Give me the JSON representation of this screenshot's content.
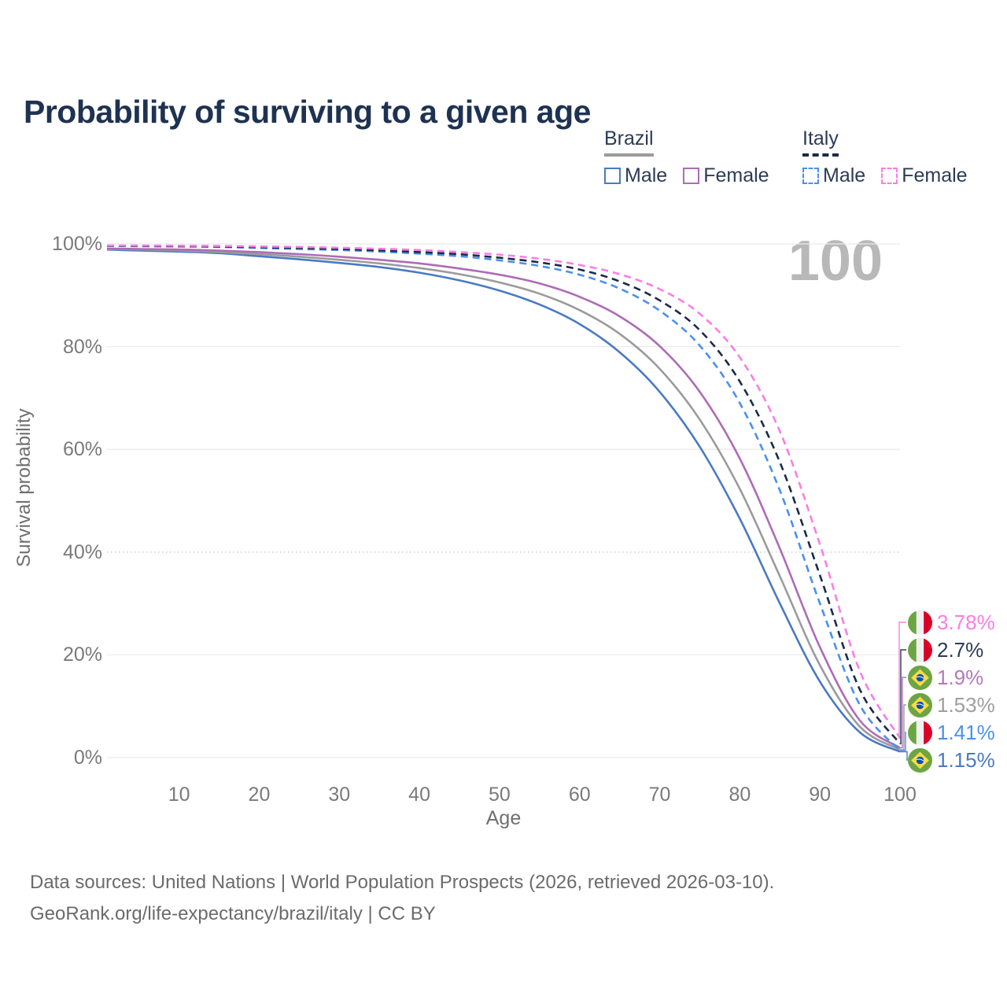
{
  "title": "Probability of surviving to a given age",
  "watermark": "100",
  "legend": {
    "groups": [
      {
        "country": "Brazil",
        "line_style": "solid",
        "underline_color": "#9b9b9b",
        "items": [
          {
            "label": "Male",
            "color": "#4a7ac2"
          },
          {
            "label": "Female",
            "color": "#ad6cb5"
          }
        ]
      },
      {
        "country": "Italy",
        "line_style": "dashed",
        "underline_color": "#1b2b47",
        "items": [
          {
            "label": "Male",
            "color": "#4a90ee"
          },
          {
            "label": "Female",
            "color": "#fa7de5"
          }
        ]
      }
    ]
  },
  "axes": {
    "y_title": "Survival probability",
    "x_title": "Age",
    "y_ticks": [
      {
        "pct": 0,
        "label": "0%"
      },
      {
        "pct": 20,
        "label": "20%"
      },
      {
        "pct": 40,
        "label": "40%"
      },
      {
        "pct": 60,
        "label": "60%"
      },
      {
        "pct": 80,
        "label": "80%"
      },
      {
        "pct": 100,
        "label": "100%"
      }
    ],
    "x_ticks": [
      10,
      20,
      30,
      40,
      50,
      60,
      70,
      80,
      90,
      100
    ]
  },
  "end_labels": [
    {
      "series": "Italy Female",
      "flag": "italy",
      "value": "3.78%",
      "color": "#fa7de5"
    },
    {
      "series": "Italy",
      "flag": "italy",
      "value": "2.7%",
      "color": "#2c3b55"
    },
    {
      "series": "Brazil Female",
      "flag": "brazil",
      "value": "1.9%",
      "color": "#b478bc"
    },
    {
      "series": "Brazil",
      "flag": "brazil",
      "value": "1.53%",
      "color": "#9e9e9e"
    },
    {
      "series": "Italy Male",
      "flag": "italy",
      "value": "1.41%",
      "color": "#4a90ee"
    },
    {
      "series": "Brazil Male",
      "flag": "brazil",
      "value": "1.15%",
      "color": "#4a7ac2"
    }
  ],
  "footer": {
    "line1": "Data sources: United Nations | World Population Prospects (2026, retrieved 2026-03-10).",
    "line2": "GeoRank.org/life-expectancy/brazil/italy | CC BY"
  },
  "flag_colors": {
    "italy": {
      "green": "#6da544",
      "white": "#f0f0f0",
      "red": "#d80027"
    },
    "brazil": {
      "green": "#6da544",
      "yellow": "#ffda44",
      "blue": "#0052b4"
    }
  },
  "chart_data": {
    "type": "line",
    "title": "Probability of surviving to a given age",
    "xlabel": "Age",
    "ylabel": "Survival probability",
    "xlim": [
      1,
      100
    ],
    "ylim": [
      0,
      100
    ],
    "x_ticks": [
      10,
      20,
      30,
      40,
      50,
      60,
      70,
      80,
      90,
      100
    ],
    "y_ticks_pct": [
      0,
      20,
      40,
      60,
      80,
      100
    ],
    "grid": "horizontal",
    "hover_age": 100,
    "hover_gridline_pct": 40,
    "legend_position": "top-right",
    "series": [
      {
        "name": "Italy Female",
        "country": "Italy",
        "sex": "Female",
        "style": "dashed",
        "color": "#fa7de5",
        "end_value_pct": 3.78,
        "points": [
          [
            1,
            99.7
          ],
          [
            5,
            99.68
          ],
          [
            10,
            99.65
          ],
          [
            15,
            99.6
          ],
          [
            20,
            99.5
          ],
          [
            25,
            99.4
          ],
          [
            30,
            99.25
          ],
          [
            35,
            99.05
          ],
          [
            40,
            98.8
          ],
          [
            45,
            98.4
          ],
          [
            50,
            97.9
          ],
          [
            55,
            97.1
          ],
          [
            60,
            95.9
          ],
          [
            65,
            94.1
          ],
          [
            70,
            91.2
          ],
          [
            75,
            86.4
          ],
          [
            80,
            77.9
          ],
          [
            85,
            63.5
          ],
          [
            90,
            41.5
          ],
          [
            95,
            16.8
          ],
          [
            100,
            3.78
          ]
        ]
      },
      {
        "name": "Italy",
        "country": "Italy",
        "sex": "All",
        "style": "dashed",
        "color": "#1b2b47",
        "end_value_pct": 2.7,
        "points": [
          [
            1,
            99.65
          ],
          [
            5,
            99.6
          ],
          [
            10,
            99.55
          ],
          [
            15,
            99.5
          ],
          [
            20,
            99.35
          ],
          [
            25,
            99.2
          ],
          [
            30,
            99.0
          ],
          [
            35,
            98.75
          ],
          [
            40,
            98.4
          ],
          [
            45,
            98.0
          ],
          [
            50,
            97.3
          ],
          [
            55,
            96.4
          ],
          [
            60,
            95.0
          ],
          [
            65,
            92.7
          ],
          [
            70,
            89.0
          ],
          [
            75,
            83.2
          ],
          [
            80,
            73.2
          ],
          [
            85,
            57.5
          ],
          [
            90,
            35.5
          ],
          [
            95,
            13.2
          ],
          [
            100,
            2.7
          ]
        ]
      },
      {
        "name": "Italy Male",
        "country": "Italy",
        "sex": "Male",
        "style": "dashed",
        "color": "#4a90ee",
        "end_value_pct": 1.41,
        "points": [
          [
            1,
            99.6
          ],
          [
            5,
            99.55
          ],
          [
            10,
            99.5
          ],
          [
            15,
            99.4
          ],
          [
            20,
            99.2
          ],
          [
            25,
            99.0
          ],
          [
            30,
            98.8
          ],
          [
            35,
            98.5
          ],
          [
            40,
            98.1
          ],
          [
            45,
            97.6
          ],
          [
            50,
            96.8
          ],
          [
            55,
            95.7
          ],
          [
            60,
            94.0
          ],
          [
            65,
            91.3
          ],
          [
            70,
            87.0
          ],
          [
            75,
            80.2
          ],
          [
            80,
            69.0
          ],
          [
            85,
            52.0
          ],
          [
            90,
            30.0
          ],
          [
            95,
            10.2
          ],
          [
            100,
            1.41
          ]
        ]
      },
      {
        "name": "Brazil Female",
        "country": "Brazil",
        "sex": "Female",
        "style": "solid",
        "color": "#ad6cb5",
        "end_value_pct": 1.9,
        "points": [
          [
            1,
            99.1
          ],
          [
            5,
            99.0
          ],
          [
            10,
            98.9
          ],
          [
            15,
            98.7
          ],
          [
            20,
            98.4
          ],
          [
            25,
            98.0
          ],
          [
            30,
            97.5
          ],
          [
            35,
            96.9
          ],
          [
            40,
            96.2
          ],
          [
            45,
            95.2
          ],
          [
            50,
            94.0
          ],
          [
            55,
            92.3
          ],
          [
            60,
            89.7
          ],
          [
            65,
            85.9
          ],
          [
            70,
            80.1
          ],
          [
            75,
            71.2
          ],
          [
            80,
            58.2
          ],
          [
            85,
            40.7
          ],
          [
            90,
            21.5
          ],
          [
            95,
            7.2
          ],
          [
            100,
            1.9
          ]
        ]
      },
      {
        "name": "Brazil",
        "country": "Brazil",
        "sex": "All",
        "style": "solid",
        "color": "#9b9b9b",
        "end_value_pct": 1.53,
        "points": [
          [
            1,
            99.0
          ],
          [
            5,
            98.9
          ],
          [
            10,
            98.7
          ],
          [
            15,
            98.4
          ],
          [
            20,
            98.0
          ],
          [
            25,
            97.5
          ],
          [
            30,
            96.9
          ],
          [
            35,
            96.2
          ],
          [
            40,
            95.3
          ],
          [
            45,
            94.1
          ],
          [
            50,
            92.5
          ],
          [
            55,
            90.3
          ],
          [
            60,
            87.1
          ],
          [
            65,
            82.5
          ],
          [
            70,
            75.7
          ],
          [
            75,
            65.8
          ],
          [
            80,
            52.3
          ],
          [
            85,
            35.3
          ],
          [
            90,
            18.0
          ],
          [
            95,
            6.0
          ],
          [
            100,
            1.53
          ]
        ]
      },
      {
        "name": "Brazil Male",
        "country": "Brazil",
        "sex": "Male",
        "style": "solid",
        "color": "#4a7ac2",
        "end_value_pct": 1.15,
        "points": [
          [
            1,
            98.9
          ],
          [
            5,
            98.7
          ],
          [
            10,
            98.5
          ],
          [
            15,
            98.2
          ],
          [
            20,
            97.6
          ],
          [
            25,
            97.0
          ],
          [
            30,
            96.3
          ],
          [
            35,
            95.5
          ],
          [
            40,
            94.4
          ],
          [
            45,
            92.9
          ],
          [
            50,
            90.9
          ],
          [
            55,
            88.2
          ],
          [
            60,
            84.4
          ],
          [
            65,
            78.9
          ],
          [
            70,
            71.2
          ],
          [
            75,
            60.5
          ],
          [
            80,
            46.5
          ],
          [
            85,
            30.0
          ],
          [
            90,
            14.8
          ],
          [
            95,
            4.9
          ],
          [
            100,
            1.15
          ]
        ]
      }
    ]
  }
}
